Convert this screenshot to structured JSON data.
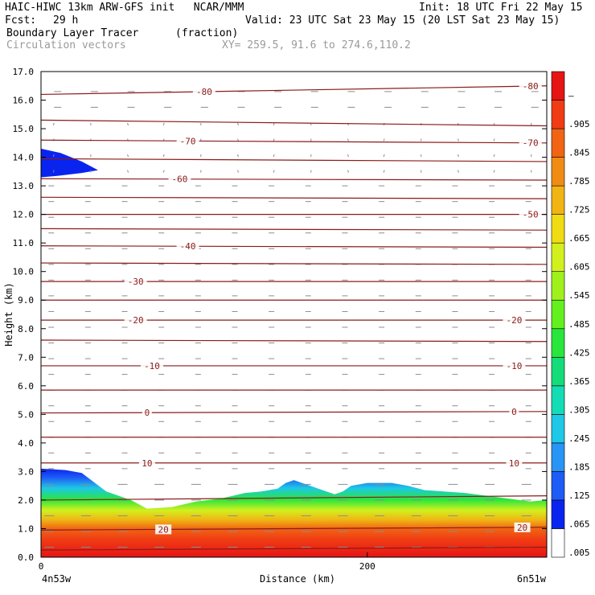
{
  "header": {
    "title_left": "HAIC-HIWC 13km ARW-GFS init   NCAR/MMM",
    "init": "Init: 18 UTC Fri 22 May 15",
    "fcst_label": "Fcst:",
    "fcst_value": "29 h",
    "valid": "Valid: 23 UTC Sat 23 May 15 (20 LST Sat 23 May 15)",
    "field_name": "Boundary Layer Tracer",
    "field_units": "(fraction)",
    "vectors_label": "Circulation vectors",
    "xy_text": "XY= 259.5, 91.6 to 274.6,110.2"
  },
  "chart_data": {
    "type": "area",
    "description_source": "vertical cross-section",
    "ylabel": "Height (km)",
    "xlabel": "Distance (km)",
    "x_left_label": "4n53w",
    "x_right_label": "6n51w",
    "xlim": [
      0,
      310
    ],
    "ylim": [
      0,
      17
    ],
    "y_ticks": [
      "0.0",
      "1.0",
      "2.0",
      "3.0",
      "4.0",
      "5.0",
      "6.0",
      "7.0",
      "8.0",
      "9.0",
      "10.0",
      "11.0",
      "12.0",
      "13.0",
      "14.0",
      "15.0",
      "16.0",
      "17.0"
    ],
    "x_ticks": [
      {
        "value": 0,
        "label": "0"
      },
      {
        "value": 200,
        "label": "200"
      }
    ],
    "colorbar": {
      "labels": [
        ".005",
        ".065",
        ".125",
        ".185",
        ".245",
        ".305",
        ".365",
        ".425",
        ".485",
        ".545",
        ".605",
        ".665",
        ".725",
        ".785",
        ".845",
        ".905",
        "–"
      ],
      "colors": [
        "#ffffff",
        "#0a24f0",
        "#1e5cf5",
        "#2894f5",
        "#1ec8e6",
        "#14dcb4",
        "#14dc78",
        "#28e63c",
        "#64f01e",
        "#a0f01e",
        "#d2f01e",
        "#f0dc14",
        "#f0b414",
        "#f08c14",
        "#f06414",
        "#f03c14",
        "#e61414"
      ]
    },
    "tracer_top_km": [
      [
        0,
        3.1
      ],
      [
        15,
        3.05
      ],
      [
        25,
        2.95
      ],
      [
        40,
        2.3
      ],
      [
        55,
        2.0
      ],
      [
        65,
        1.7
      ],
      [
        80,
        1.75
      ],
      [
        95,
        1.95
      ],
      [
        110,
        2.05
      ],
      [
        125,
        2.25
      ],
      [
        135,
        2.3
      ],
      [
        145,
        2.4
      ],
      [
        150,
        2.6
      ],
      [
        155,
        2.7
      ],
      [
        160,
        2.6
      ],
      [
        170,
        2.4
      ],
      [
        180,
        2.2
      ],
      [
        185,
        2.3
      ],
      [
        190,
        2.5
      ],
      [
        200,
        2.6
      ],
      [
        215,
        2.6
      ],
      [
        225,
        2.5
      ],
      [
        235,
        2.35
      ],
      [
        260,
        2.25
      ],
      [
        280,
        2.1
      ],
      [
        300,
        1.95
      ],
      [
        310,
        2.0
      ]
    ],
    "upper_patch_km": [
      [
        0,
        14.3
      ],
      [
        12,
        14.15
      ],
      [
        25,
        13.85
      ],
      [
        35,
        13.55
      ],
      [
        25,
        13.45
      ],
      [
        10,
        13.35
      ],
      [
        0,
        13.3
      ]
    ],
    "temperature_contours": [
      {
        "label": "-80",
        "y_start_km": 16.2,
        "y_end_km": 16.5,
        "label_x": [
          100,
          300
        ]
      },
      {
        "label": "",
        "y_start_km": 15.3,
        "y_end_km": 15.1,
        "label_x": []
      },
      {
        "label": "-70",
        "y_start_km": 14.6,
        "y_end_km": 14.5,
        "label_x": [
          90,
          300
        ]
      },
      {
        "label": "",
        "y_start_km": 13.95,
        "y_end_km": 13.85,
        "label_x": []
      },
      {
        "label": "-60",
        "y_start_km": 13.25,
        "y_end_km": 13.2,
        "label_x": [
          85
        ]
      },
      {
        "label": "",
        "y_start_km": 12.6,
        "y_end_km": 12.55,
        "label_x": []
      },
      {
        "label": "-50",
        "y_start_km": 12.0,
        "y_end_km": 12.0,
        "label_x": [
          300
        ]
      },
      {
        "label": "",
        "y_start_km": 11.5,
        "y_end_km": 11.45,
        "label_x": []
      },
      {
        "label": "-40",
        "y_start_km": 10.9,
        "y_end_km": 10.85,
        "label_x": [
          90
        ]
      },
      {
        "label": "",
        "y_start_km": 10.3,
        "y_end_km": 10.25,
        "label_x": []
      },
      {
        "label": "-30",
        "y_start_km": 9.65,
        "y_end_km": 9.65,
        "label_x": [
          58
        ]
      },
      {
        "label": "",
        "y_start_km": 9.0,
        "y_end_km": 9.0,
        "label_x": []
      },
      {
        "label": "-20",
        "y_start_km": 8.3,
        "y_end_km": 8.3,
        "label_x": [
          58,
          290
        ]
      },
      {
        "label": "",
        "y_start_km": 7.6,
        "y_end_km": 7.55,
        "label_x": []
      },
      {
        "label": "-10",
        "y_start_km": 6.7,
        "y_end_km": 6.7,
        "label_x": [
          68,
          290
        ]
      },
      {
        "label": "",
        "y_start_km": 5.85,
        "y_end_km": 5.85,
        "label_x": []
      },
      {
        "label": "0",
        "y_start_km": 5.05,
        "y_end_km": 5.1,
        "label_x": [
          65,
          290
        ]
      },
      {
        "label": "",
        "y_start_km": 4.2,
        "y_end_km": 4.2,
        "label_x": []
      },
      {
        "label": "10",
        "y_start_km": 3.3,
        "y_end_km": 3.3,
        "label_x": [
          65,
          290
        ]
      },
      {
        "label": "",
        "y_start_km": 2.0,
        "y_end_km": 2.15,
        "label_x": []
      },
      {
        "label": "20",
        "y_start_km": 0.95,
        "y_end_km": 1.05,
        "label_x": [
          75,
          295
        ]
      },
      {
        "label": "",
        "y_start_km": 0.25,
        "y_end_km": 0.35,
        "label_x": []
      }
    ]
  }
}
